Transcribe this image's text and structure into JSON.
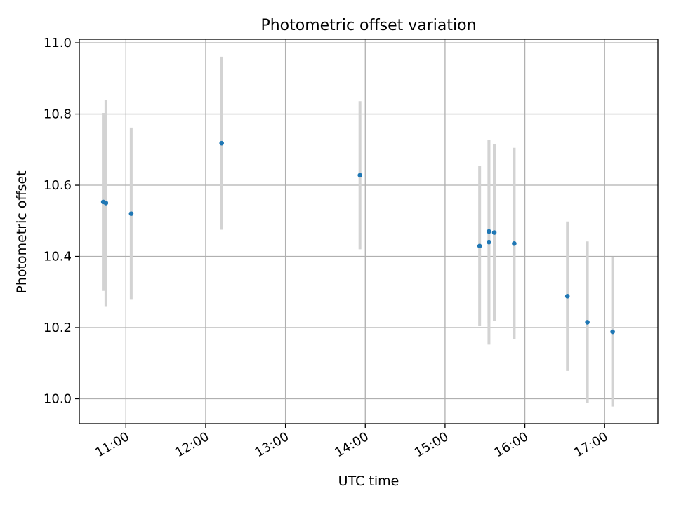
{
  "chart_data": {
    "type": "scatter",
    "title": "Photometric offset variation",
    "xlabel": "UTC time",
    "ylabel": "Photometric offset",
    "xlim": [
      "10:25",
      "17:40"
    ],
    "ylim": [
      9.93,
      11.01
    ],
    "x_ticks": [
      "11:00",
      "12:00",
      "13:00",
      "14:00",
      "15:00",
      "16:00",
      "17:00"
    ],
    "y_ticks": [
      10.0,
      10.2,
      10.4,
      10.6,
      10.8,
      11.0
    ],
    "y_tick_labels": [
      "10.0",
      "10.2",
      "10.4",
      "10.6",
      "10.8",
      "11.0"
    ],
    "grid": true,
    "colors": {
      "points": "#1f77b4",
      "errorbars": "#d3d3d3",
      "grid": "#b0b0b0"
    },
    "series": [
      {
        "points": [
          {
            "x": "10:43",
            "y": 10.553,
            "err": 0.25
          },
          {
            "x": "10:45",
            "y": 10.55,
            "err": 0.29
          },
          {
            "x": "11:04",
            "y": 10.52,
            "err": 0.242
          },
          {
            "x": "12:12",
            "y": 10.718,
            "err": 0.243
          },
          {
            "x": "13:56",
            "y": 10.628,
            "err": 0.208
          },
          {
            "x": "15:26",
            "y": 10.429,
            "err": 0.225
          },
          {
            "x": "15:33",
            "y": 10.47,
            "err": 0.258
          },
          {
            "x": "15:33",
            "y": 10.44,
            "err": 0.288
          },
          {
            "x": "15:37",
            "y": 10.467,
            "err": 0.249
          },
          {
            "x": "15:52",
            "y": 10.436,
            "err": 0.269
          },
          {
            "x": "16:32",
            "y": 10.288,
            "err": 0.21
          },
          {
            "x": "16:47",
            "y": 10.215,
            "err": 0.227
          },
          {
            "x": "17:06",
            "y": 10.188,
            "err": 0.21
          }
        ]
      }
    ]
  }
}
